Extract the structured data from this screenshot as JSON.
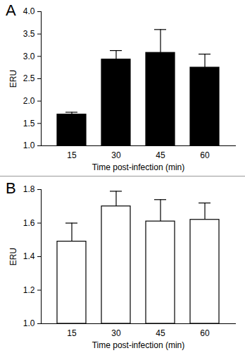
{
  "chart_data": [
    {
      "type": "bar",
      "title": "A",
      "categories": [
        "15",
        "30",
        "45",
        "60"
      ],
      "values": [
        1.7,
        2.93,
        3.08,
        2.75
      ],
      "errors": [
        0.05,
        0.2,
        0.52,
        0.3
      ],
      "color": "#000000",
      "x_label": "Time post-infection (min)",
      "y_label": "ERU",
      "ylim": [
        1,
        4
      ],
      "yticks": [
        1,
        1.5,
        2,
        2.5,
        3,
        3.5,
        4
      ]
    },
    {
      "type": "bar",
      "title": "B",
      "categories": [
        "15",
        "30",
        "45",
        "60"
      ],
      "values": [
        1.49,
        1.7,
        1.61,
        1.62
      ],
      "errors": [
        0.11,
        0.09,
        0.13,
        0.1
      ],
      "color": "#ffffff",
      "x_label": "Time post-infection (min)",
      "y_label": "ERU",
      "ylim": [
        1,
        1.8
      ],
      "yticks": [
        1,
        1.2,
        1.4,
        1.6,
        1.8
      ]
    }
  ]
}
